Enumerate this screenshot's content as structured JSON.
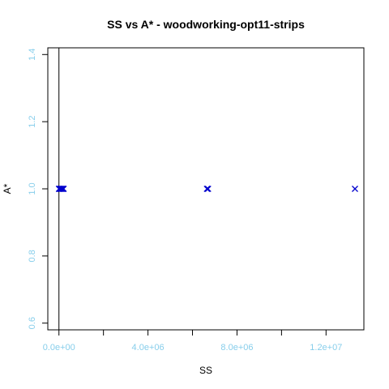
{
  "chart_data": {
    "type": "scatter",
    "title": "SS vs A* - woodworking-opt11-strips",
    "xlabel": "SS",
    "ylabel": "A*",
    "xlim": [
      -500000,
      13700000
    ],
    "ylim": [
      0.58,
      1.42
    ],
    "x_ticks": [
      0,
      2000000,
      4000000,
      6000000,
      8000000,
      10000000,
      12000000
    ],
    "x_tick_labels": [
      "0.0e+00",
      "",
      "4.0e+06",
      "",
      "8.0e+06",
      "",
      "1.2e+07"
    ],
    "y_ticks": [
      0.6,
      0.8,
      1.0,
      1.2,
      1.4
    ],
    "y_tick_labels": [
      "0.6",
      "0.8",
      "1.0",
      "1.2",
      "1.4"
    ],
    "reference_line_x": 0,
    "grid": false,
    "legend": "none",
    "colors": {
      "points": "#0000cd",
      "tick_labels": "#87ceeb",
      "axes": "#000000"
    },
    "series": [
      {
        "marker": "x",
        "points": [
          {
            "x": 0,
            "y": 1.0
          },
          {
            "x": 30000,
            "y": 1.0
          },
          {
            "x": 60000,
            "y": 1.0
          },
          {
            "x": 90000,
            "y": 1.0
          },
          {
            "x": 130000,
            "y": 1.0
          },
          {
            "x": 170000,
            "y": 1.0
          },
          {
            "x": 210000,
            "y": 1.0
          },
          {
            "x": 6650000,
            "y": 1.0
          },
          {
            "x": 6700000,
            "y": 1.0
          },
          {
            "x": 13300000,
            "y": 1.0
          }
        ]
      }
    ]
  }
}
